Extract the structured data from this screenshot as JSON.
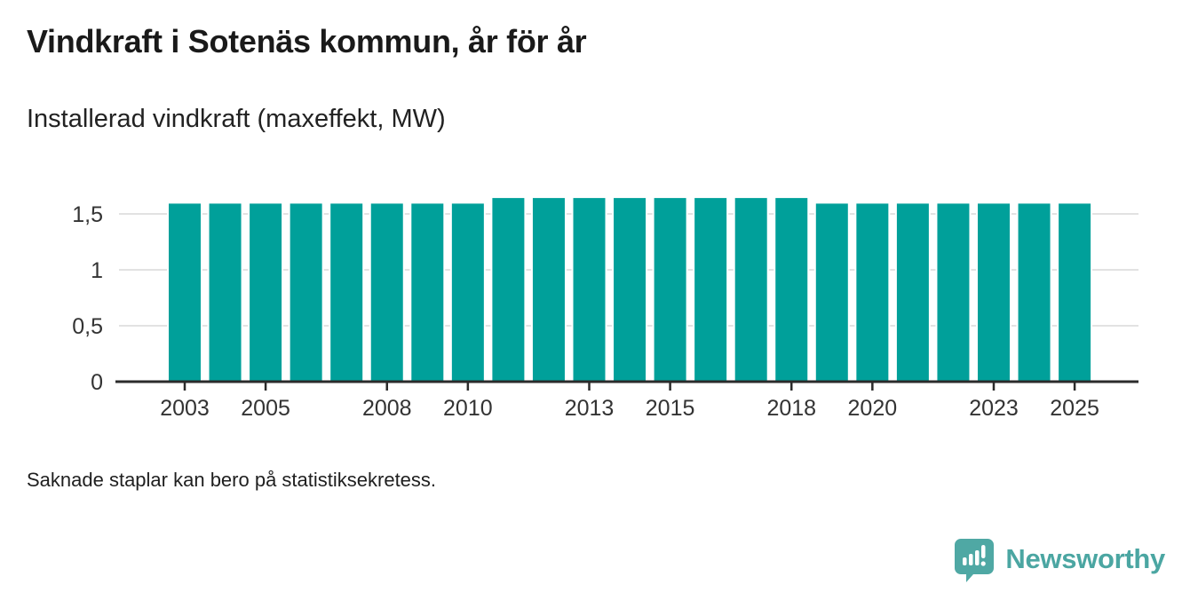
{
  "chart_data": {
    "type": "bar",
    "title": "Vindkraft i Sotenäs kommun, år för år",
    "subtitle": "Installerad vindkraft (maxeffekt, MW)",
    "unit": "MW",
    "categories": [
      "2003",
      "2004",
      "2005",
      "2006",
      "2007",
      "2008",
      "2009",
      "2010",
      "2011",
      "2012",
      "2013",
      "2014",
      "2015",
      "2016",
      "2017",
      "2018",
      "2019",
      "2020",
      "2021",
      "2022",
      "2023",
      "2024",
      "2025"
    ],
    "values": [
      1.6,
      1.6,
      1.6,
      1.6,
      1.6,
      1.6,
      1.6,
      1.6,
      1.65,
      1.65,
      1.65,
      1.65,
      1.65,
      1.65,
      1.65,
      1.65,
      1.6,
      1.6,
      1.6,
      1.6,
      1.6,
      1.6,
      1.6
    ],
    "ylim": [
      0,
      1.75
    ],
    "yticks": [
      {
        "value": 0,
        "label": "0"
      },
      {
        "value": 0.5,
        "label": "0,5"
      },
      {
        "value": 1,
        "label": "1"
      },
      {
        "value": 1.5,
        "label": "1,5"
      }
    ],
    "xticks": [
      "2003",
      "2005",
      "2008",
      "2010",
      "2013",
      "2015",
      "2018",
      "2020",
      "2023",
      "2025"
    ],
    "grid": "horizontal",
    "legend": "none",
    "bar_color": "#00a09a",
    "axis_color": "#2b2b2b",
    "gridline_color": "#e2e2e2",
    "tick_label_color": "#333333"
  },
  "footer": {
    "note": "Saknade staplar kan bero på statistiksekretess."
  },
  "branding": {
    "name": "Newsworthy",
    "color": "#4ba6a2",
    "icon": "newsworthy-speech-bubble-chart-icon"
  }
}
